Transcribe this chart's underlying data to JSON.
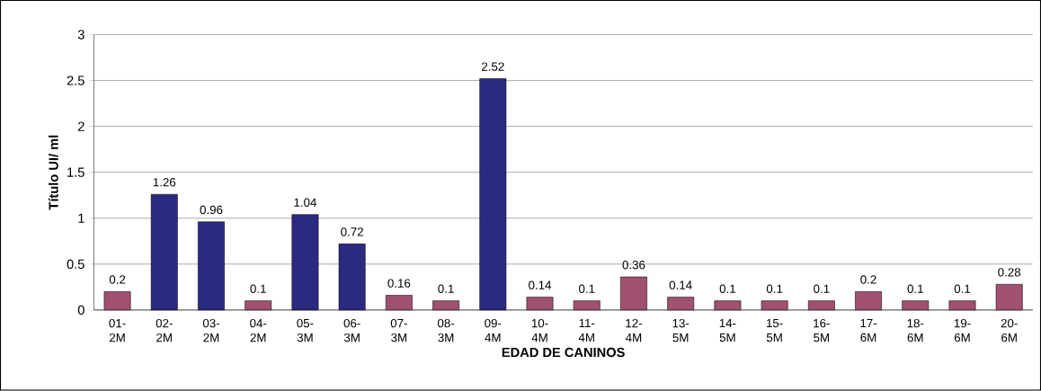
{
  "chart_data": {
    "type": "bar",
    "xlabel": "EDAD DE CANINOS",
    "ylabel": "Título UI/ ml",
    "categories": [
      "01-2M",
      "02-2M",
      "03-2M",
      "04-2M",
      "05-3M",
      "06-3M",
      "07-3M",
      "08-3M",
      "09-4M",
      "10-4M",
      "11-4M",
      "12-4M",
      "13-5M",
      "14-5M",
      "15-5M",
      "16-5M",
      "17-6M",
      "18-6M",
      "19-6M",
      "20-6M"
    ],
    "values": [
      0.2,
      1.26,
      0.96,
      0.1,
      1.04,
      0.72,
      0.16,
      0.1,
      2.52,
      0.14,
      0.1,
      0.36,
      0.14,
      0.1,
      0.1,
      0.1,
      0.2,
      0.1,
      0.1,
      0.28
    ],
    "colors": [
      "#a05070",
      "#2a2a80",
      "#2a2a80",
      "#a05070",
      "#2a2a80",
      "#2a2a80",
      "#a05070",
      "#a05070",
      "#2a2a80",
      "#a05070",
      "#a05070",
      "#a05070",
      "#a05070",
      "#a05070",
      "#a05070",
      "#a05070",
      "#a05070",
      "#a05070",
      "#a05070",
      "#a05070"
    ],
    "ylim": [
      0,
      3
    ],
    "yticks": [
      0,
      0.5,
      1,
      1.5,
      2,
      2.5,
      3
    ],
    "grid": "y",
    "data_labels": true
  }
}
